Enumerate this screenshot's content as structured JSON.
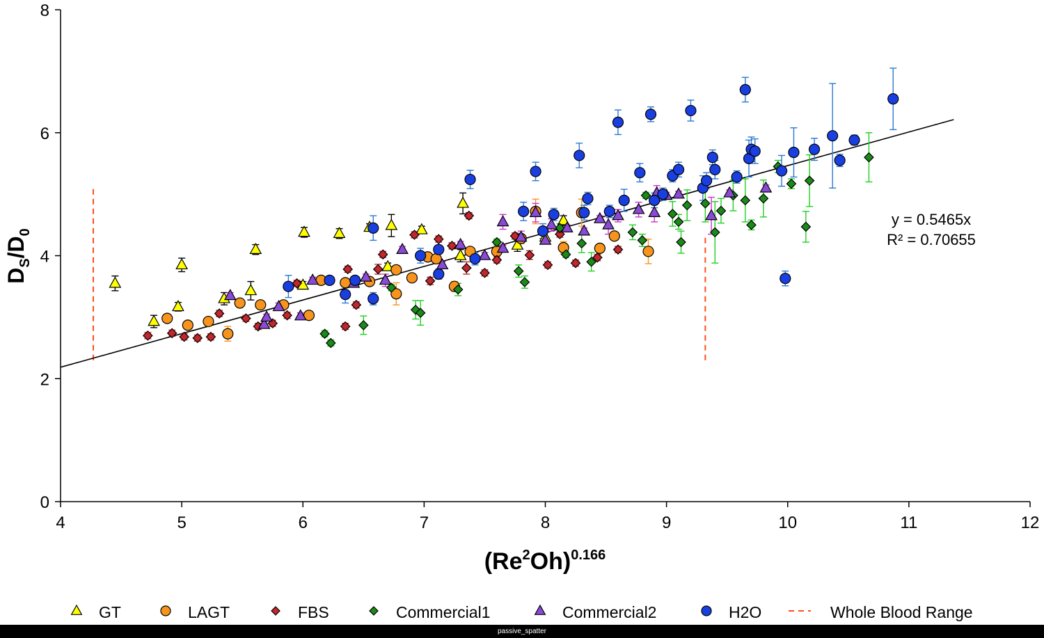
{
  "chart_data": {
    "type": "scatter",
    "xlabel_base": "(Re",
    "xlabel_sup1": "2",
    "xlabel_mid": "Oh)",
    "xlabel_sup2": "0.166",
    "ylabel_base": "D",
    "ylabel_sub1": "S",
    "ylabel_slash": "/D",
    "ylabel_sub2": "0",
    "xlim": [
      4,
      12
    ],
    "ylim": [
      0,
      8
    ],
    "xticks": [
      "4",
      "5",
      "6",
      "7",
      "8",
      "9",
      "10",
      "11",
      "12"
    ],
    "yticks": [
      "0",
      "2",
      "4",
      "6",
      "8"
    ],
    "grid": false,
    "legend_position": "bottom",
    "trendline": {
      "equation": "y = 0.5465x",
      "r2_text": "R² = 0.70655",
      "slope": 0.5465,
      "x_range": [
        4,
        11.37
      ],
      "color": "#000000"
    },
    "whole_blood_range": {
      "name": "Whole Blood Range",
      "color": "#ff4d1a",
      "lines": [
        {
          "x": 4.27,
          "y_min": 2.3,
          "y_max": 5.1
        },
        {
          "x": 9.32,
          "y_min": 2.3,
          "y_max": 4.35
        }
      ]
    },
    "series": [
      {
        "name": "GT",
        "marker": "triangle",
        "color": "#ffff00",
        "error_color": "#000000",
        "points": [
          [
            4.45,
            3.55,
            0.12
          ],
          [
            4.77,
            2.93,
            0.1
          ],
          [
            4.97,
            3.17,
            0.07
          ],
          [
            5.0,
            3.85,
            0.11
          ],
          [
            5.35,
            3.3,
            0.1
          ],
          [
            5.57,
            3.43,
            0.15
          ],
          [
            5.61,
            4.1,
            0.08
          ],
          [
            6.0,
            3.52,
            0.06
          ],
          [
            6.01,
            4.38,
            0.08
          ],
          [
            6.3,
            4.36,
            0.08
          ],
          [
            6.55,
            4.46,
            0.06
          ],
          [
            6.73,
            4.49,
            0.18
          ],
          [
            6.98,
            4.42,
            0.06
          ],
          [
            7.32,
            4.85,
            0.17
          ],
          [
            6.7,
            3.82,
            0.06
          ],
          [
            7.3,
            4.0,
            0.1
          ],
          [
            7.77,
            4.17,
            0.1
          ],
          [
            8.0,
            4.3,
            0.1
          ],
          [
            8.15,
            4.57,
            0.08
          ]
        ]
      },
      {
        "name": "LAGT",
        "marker": "circle",
        "color": "#f7941d",
        "error_color": "#f7941d",
        "points": [
          [
            4.88,
            2.98,
            0.05
          ],
          [
            5.05,
            2.87,
            0.05
          ],
          [
            5.22,
            2.93,
            0.05
          ],
          [
            5.38,
            2.73,
            0.12
          ],
          [
            5.48,
            3.23,
            0.05
          ],
          [
            5.65,
            3.2,
            0.05
          ],
          [
            5.84,
            3.2,
            0.06
          ],
          [
            6.05,
            3.03,
            0.05
          ],
          [
            6.15,
            3.6,
            0.05
          ],
          [
            6.35,
            3.56,
            0.05
          ],
          [
            6.55,
            3.58,
            0.05
          ],
          [
            6.77,
            3.77,
            0.07
          ],
          [
            6.77,
            3.38,
            0.18
          ],
          [
            6.9,
            3.64,
            0.05
          ],
          [
            7.03,
            3.98,
            0.06
          ],
          [
            7.1,
            3.95,
            0.05
          ],
          [
            7.25,
            3.5,
            0.08
          ],
          [
            7.38,
            4.07,
            0.05
          ],
          [
            7.6,
            4.07,
            0.07
          ],
          [
            7.8,
            4.28,
            0.05
          ],
          [
            7.92,
            4.72,
            0.2
          ],
          [
            8.15,
            4.13,
            0.1
          ],
          [
            8.3,
            4.7,
            0.22
          ],
          [
            8.45,
            4.12,
            0.05
          ],
          [
            8.57,
            4.32,
            0.05
          ],
          [
            8.85,
            4.07,
            0.2
          ]
        ]
      },
      {
        "name": "FBS",
        "marker": "diamond",
        "color": "#c1272d",
        "error_color": "#c1272d",
        "points": [
          [
            4.72,
            2.7,
            0.05
          ],
          [
            4.92,
            2.74,
            0.05
          ],
          [
            5.02,
            2.68,
            0.05
          ],
          [
            5.13,
            2.66,
            0.05
          ],
          [
            5.24,
            2.68,
            0.05
          ],
          [
            5.31,
            3.06,
            0.05
          ],
          [
            5.53,
            2.98,
            0.05
          ],
          [
            5.63,
            2.85,
            0.05
          ],
          [
            5.75,
            2.9,
            0.05
          ],
          [
            5.87,
            3.03,
            0.05
          ],
          [
            5.95,
            3.55,
            0.05
          ],
          [
            6.35,
            2.85,
            0.05
          ],
          [
            6.37,
            3.78,
            0.05
          ],
          [
            6.44,
            3.2,
            0.05
          ],
          [
            6.62,
            3.78,
            0.08
          ],
          [
            6.66,
            4.02,
            0.05
          ],
          [
            6.92,
            4.34,
            0.05
          ],
          [
            7.05,
            3.59,
            0.06
          ],
          [
            7.12,
            4.27,
            0.05
          ],
          [
            7.23,
            4.16,
            0.05
          ],
          [
            7.35,
            3.8,
            0.1
          ],
          [
            7.37,
            4.65,
            0.05
          ],
          [
            7.5,
            3.72,
            0.05
          ],
          [
            7.6,
            3.93,
            0.05
          ],
          [
            7.75,
            4.32,
            0.05
          ],
          [
            7.87,
            4.01,
            0.07
          ],
          [
            8.02,
            3.85,
            0.05
          ],
          [
            8.12,
            4.35,
            0.05
          ],
          [
            8.25,
            3.88,
            0.05
          ],
          [
            8.43,
            3.97,
            0.05
          ],
          [
            8.6,
            4.1,
            0.05
          ]
        ]
      },
      {
        "name": "Commercial1",
        "marker": "diamond",
        "color": "#1a8a1a",
        "error_color": "#1fcf1f",
        "points": [
          [
            6.18,
            2.73,
            0.05
          ],
          [
            6.23,
            2.58,
            0.05
          ],
          [
            6.5,
            2.87,
            0.15
          ],
          [
            6.73,
            3.48,
            0.05
          ],
          [
            6.93,
            3.12,
            0.15
          ],
          [
            6.97,
            3.07,
            0.2
          ],
          [
            7.28,
            3.45,
            0.1
          ],
          [
            7.6,
            4.22,
            0.05
          ],
          [
            7.78,
            3.75,
            0.1
          ],
          [
            7.83,
            3.57,
            0.1
          ],
          [
            8.12,
            4.45,
            0.07
          ],
          [
            8.17,
            4.02,
            0.05
          ],
          [
            8.3,
            4.2,
            0.15
          ],
          [
            8.38,
            3.9,
            0.15
          ],
          [
            8.72,
            4.38,
            0.12
          ],
          [
            8.8,
            4.25,
            0.1
          ],
          [
            8.83,
            4.98,
            0.05
          ],
          [
            9.05,
            4.68,
            0.2
          ],
          [
            9.1,
            4.55,
            0.12
          ],
          [
            9.12,
            4.22,
            0.18
          ],
          [
            9.17,
            4.82,
            0.25
          ],
          [
            9.32,
            4.85,
            0.3
          ],
          [
            9.4,
            4.38,
            0.5
          ],
          [
            9.45,
            4.73,
            0.2
          ],
          [
            9.55,
            4.98,
            0.25
          ],
          [
            9.65,
            4.9,
            0.35
          ],
          [
            9.7,
            4.5,
            0.08
          ],
          [
            9.8,
            4.93,
            0.3
          ],
          [
            9.92,
            5.45,
            0.1
          ],
          [
            10.03,
            5.17,
            0.08
          ],
          [
            10.15,
            4.47,
            0.25
          ],
          [
            10.18,
            5.22,
            0.42
          ],
          [
            10.67,
            5.6,
            0.4
          ]
        ]
      },
      {
        "name": "Commercial2",
        "marker": "triangle",
        "color": "#8a4ad6",
        "error_color": "#cc33cc",
        "points": [
          [
            5.4,
            3.35,
            0.05
          ],
          [
            5.68,
            2.88,
            0.05
          ],
          [
            5.7,
            3.0,
            0.05
          ],
          [
            5.8,
            3.17,
            0.06
          ],
          [
            5.98,
            3.02,
            0.05
          ],
          [
            6.08,
            3.6,
            0.05
          ],
          [
            6.42,
            3.55,
            0.05
          ],
          [
            6.52,
            3.65,
            0.05
          ],
          [
            6.68,
            3.6,
            0.1
          ],
          [
            6.82,
            4.1,
            0.05
          ],
          [
            7.15,
            3.85,
            0.05
          ],
          [
            7.3,
            4.18,
            0.05
          ],
          [
            7.5,
            4.0,
            0.05
          ],
          [
            7.65,
            4.12,
            0.05
          ],
          [
            7.65,
            4.55,
            0.12
          ],
          [
            7.8,
            4.3,
            0.1
          ],
          [
            7.92,
            4.7,
            0.15
          ],
          [
            8.0,
            4.25,
            0.05
          ],
          [
            8.05,
            4.5,
            0.1
          ],
          [
            8.18,
            4.45,
            0.05
          ],
          [
            8.32,
            4.4,
            0.05
          ],
          [
            8.45,
            4.6,
            0.05
          ],
          [
            8.52,
            4.5,
            0.15
          ],
          [
            8.6,
            4.65,
            0.1
          ],
          [
            8.77,
            4.75,
            0.12
          ],
          [
            8.9,
            4.7,
            0.15
          ],
          [
            8.92,
            5.02,
            0.12
          ],
          [
            9.0,
            4.98,
            0.05
          ],
          [
            9.1,
            5.0,
            0.05
          ],
          [
            9.37,
            4.65,
            0.3
          ],
          [
            9.52,
            5.02,
            0.05
          ],
          [
            9.82,
            5.1,
            0.05
          ]
        ]
      },
      {
        "name": "H2O",
        "marker": "circle",
        "color": "#1a3fe0",
        "error_color": "#2b78d4",
        "points": [
          [
            5.88,
            3.5,
            0.18
          ],
          [
            6.22,
            3.6,
            0.05
          ],
          [
            6.35,
            3.37,
            0.14
          ],
          [
            6.43,
            3.6,
            0.05
          ],
          [
            6.58,
            3.3,
            0.1
          ],
          [
            6.58,
            4.45,
            0.2
          ],
          [
            6.97,
            4.0,
            0.12
          ],
          [
            7.12,
            4.1,
            0.07
          ],
          [
            7.12,
            3.7,
            0.08
          ],
          [
            7.38,
            5.24,
            0.15
          ],
          [
            7.42,
            3.95,
            0.1
          ],
          [
            7.82,
            4.72,
            0.15
          ],
          [
            7.92,
            5.37,
            0.15
          ],
          [
            7.98,
            4.4,
            0.12
          ],
          [
            8.07,
            4.67,
            0.1
          ],
          [
            8.28,
            5.63,
            0.2
          ],
          [
            8.32,
            4.7,
            0.12
          ],
          [
            8.35,
            4.93,
            0.1
          ],
          [
            8.53,
            4.72,
            0.1
          ],
          [
            8.6,
            6.17,
            0.2
          ],
          [
            8.65,
            4.9,
            0.18
          ],
          [
            8.78,
            5.35,
            0.15
          ],
          [
            8.87,
            6.3,
            0.12
          ],
          [
            8.9,
            4.9,
            0.12
          ],
          [
            8.97,
            5.0,
            0.1
          ],
          [
            9.05,
            5.3,
            0.1
          ],
          [
            9.1,
            5.4,
            0.12
          ],
          [
            9.2,
            6.36,
            0.17
          ],
          [
            9.3,
            5.1,
            0.2
          ],
          [
            9.33,
            5.22,
            0.13
          ],
          [
            9.38,
            5.6,
            0.12
          ],
          [
            9.4,
            5.4,
            0.15
          ],
          [
            9.58,
            5.28,
            0.1
          ],
          [
            9.65,
            6.7,
            0.2
          ],
          [
            9.68,
            5.58,
            0.3
          ],
          [
            9.7,
            5.73,
            0.2
          ],
          [
            9.73,
            5.7,
            0.2
          ],
          [
            9.95,
            5.38,
            0.25
          ],
          [
            9.98,
            3.63,
            0.12
          ],
          [
            10.05,
            5.68,
            0.4
          ],
          [
            10.22,
            5.73,
            0.18
          ],
          [
            10.37,
            5.95,
            0.85
          ],
          [
            10.43,
            5.55,
            0.1
          ],
          [
            10.55,
            5.88,
            0.08
          ],
          [
            10.87,
            6.55,
            0.5
          ]
        ]
      }
    ]
  },
  "footer": {
    "caption": "passive_spatter"
  }
}
